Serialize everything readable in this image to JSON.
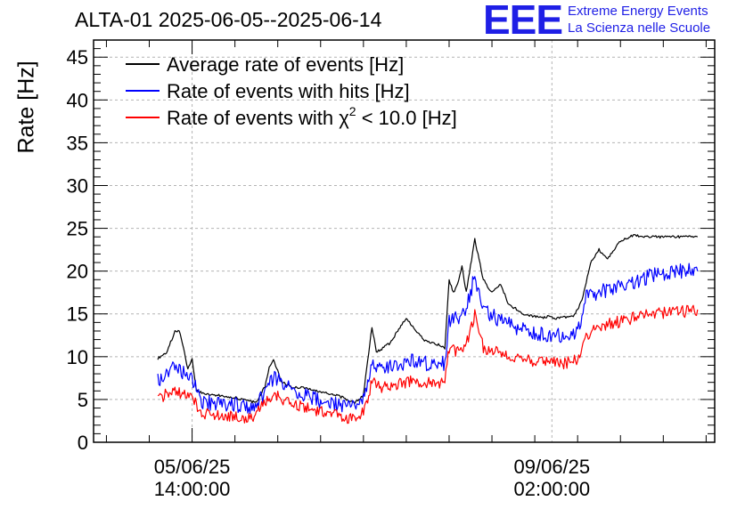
{
  "header": {
    "title": "ALTA-01 2025-06-05--2025-06-14",
    "logo_mark": "EEE",
    "logo_line1": "Extreme Energy Events",
    "logo_line2": "La Scienza nelle Scuole"
  },
  "colors": {
    "black": "#000000",
    "blue": "#0000ff",
    "red": "#ff0000",
    "grid": "#b4b4b4",
    "logo": "#1f1fe6"
  },
  "chart_data": {
    "type": "line",
    "ylabel": "Rate [Hz]",
    "ylim": [
      0,
      47
    ],
    "yticks": [
      0,
      5,
      10,
      15,
      20,
      25,
      30,
      35,
      40,
      45
    ],
    "xlim": [
      "2025-06-04T15:00",
      "2025-06-10T16:00"
    ],
    "xticks": [
      {
        "t": "2025-06-05T14:00",
        "date": "05/06/25",
        "time": "14:00:00"
      },
      {
        "t": "2025-06-09T02:00",
        "date": "09/06/25",
        "time": "02:00:00"
      }
    ],
    "grid": true,
    "legend_position": "top-left",
    "legend": [
      {
        "name": "Average rate of events [Hz]",
        "color": "#000000"
      },
      {
        "name": "Rate of events with hits [Hz]",
        "color": "#0000ff"
      },
      {
        "name_prefix": "Rate of events with ",
        "name_symbol": "χ",
        "name_sup": "2",
        "name_suffix": " < 10.0 [Hz]",
        "color": "#ff0000"
      }
    ],
    "series": [
      {
        "name": "Average rate of events [Hz]",
        "color": "#000000",
        "x": [
          "2025-06-05T06:00",
          "2025-06-05T08:00",
          "2025-06-05T10:00",
          "2025-06-05T11:00",
          "2025-06-05T12:00",
          "2025-06-05T13:00",
          "2025-06-05T14:00",
          "2025-06-05T15:00",
          "2025-06-05T17:00",
          "2025-06-05T20:00",
          "2025-06-05T23:00",
          "2025-06-06T02:00",
          "2025-06-06T05:00",
          "2025-06-06T07:00",
          "2025-06-06T08:00",
          "2025-06-06T09:00",
          "2025-06-06T11:00",
          "2025-06-06T13:00",
          "2025-06-06T16:00",
          "2025-06-06T20:00",
          "2025-06-07T00:00",
          "2025-06-07T02:00",
          "2025-06-07T04:00",
          "2025-06-07T06:00",
          "2025-06-07T08:00",
          "2025-06-07T09:00",
          "2025-06-07T12:00",
          "2025-06-07T16:00",
          "2025-06-07T20:00",
          "2025-06-07T23:00",
          "2025-06-08T01:00",
          "2025-06-08T02:00",
          "2025-06-08T03:00",
          "2025-06-08T04:00",
          "2025-06-08T05:00",
          "2025-06-08T06:00",
          "2025-06-08T08:00",
          "2025-06-08T10:00",
          "2025-06-08T12:00",
          "2025-06-08T14:00",
          "2025-06-08T16:00",
          "2025-06-08T18:00",
          "2025-06-08T20:00",
          "2025-06-08T22:00",
          "2025-06-09T00:00",
          "2025-06-09T01:00",
          "2025-06-09T03:00",
          "2025-06-09T05:00",
          "2025-06-09T07:00",
          "2025-06-09T09:00",
          "2025-06-09T11:00",
          "2025-06-09T13:00",
          "2025-06-09T15:00",
          "2025-06-09T18:00",
          "2025-06-09T21:00",
          "2025-06-10T00:00",
          "2025-06-10T03:00",
          "2025-06-10T05:00",
          "2025-06-10T06:00",
          "2025-06-10T08:00",
          "2025-06-10T10:00",
          "2025-06-10T12:00"
        ],
        "values": [
          9.8,
          10.5,
          12.9,
          13.0,
          11.0,
          8.5,
          9.8,
          6.0,
          5.7,
          5.5,
          5.3,
          5.0,
          4.6,
          6.5,
          8.8,
          9.6,
          7.0,
          6.5,
          6.4,
          5.9,
          5.5,
          5.0,
          4.6,
          5.5,
          13.5,
          10.5,
          11.5,
          14.5,
          12.0,
          11.5,
          11.0,
          19.0,
          17.5,
          18.5,
          20.5,
          17.5,
          23.7,
          19.0,
          17.5,
          18.5,
          16.0,
          15.5,
          14.8,
          14.7,
          14.5,
          14.7,
          14.5,
          14.6,
          14.7,
          16.5,
          21.0,
          22.5,
          21.5,
          23.5,
          24.2,
          24.0,
          24.0,
          24.0,
          24.0,
          24.0,
          24.0,
          24.0
        ]
      },
      {
        "name": "Rate of events with hits [Hz]",
        "color": "#0000ff",
        "x": [
          "2025-06-05T06:00",
          "2025-06-05T08:00",
          "2025-06-05T10:00",
          "2025-06-05T12:00",
          "2025-06-05T14:00",
          "2025-06-05T16:00",
          "2025-06-05T20:00",
          "2025-06-06T00:00",
          "2025-06-06T04:00",
          "2025-06-06T07:00",
          "2025-06-06T09:00",
          "2025-06-06T12:00",
          "2025-06-06T16:00",
          "2025-06-06T20:00",
          "2025-06-07T00:00",
          "2025-06-07T03:00",
          "2025-06-07T06:00",
          "2025-06-07T08:00",
          "2025-06-07T10:00",
          "2025-06-07T14:00",
          "2025-06-07T18:00",
          "2025-06-07T22:00",
          "2025-06-08T01:00",
          "2025-06-08T02:00",
          "2025-06-08T04:00",
          "2025-06-08T06:00",
          "2025-06-08T08:00",
          "2025-06-08T10:00",
          "2025-06-08T13:00",
          "2025-06-08T17:00",
          "2025-06-08T21:00",
          "2025-06-09T01:00",
          "2025-06-09T05:00",
          "2025-06-09T08:00",
          "2025-06-09T10:00",
          "2025-06-09T13:00",
          "2025-06-09T17:00",
          "2025-06-09T21:00",
          "2025-06-10T01:00",
          "2025-06-10T05:00",
          "2025-06-10T09:00",
          "2025-06-10T12:00"
        ],
        "values": [
          7.2,
          8.0,
          8.8,
          8.0,
          7.5,
          4.8,
          4.5,
          4.4,
          4.2,
          5.7,
          7.6,
          6.5,
          5.5,
          4.8,
          4.5,
          4.0,
          5.0,
          9.5,
          8.5,
          9.0,
          9.5,
          9.0,
          9.2,
          14.0,
          14.5,
          15.5,
          19.5,
          15.5,
          14.5,
          13.5,
          13.0,
          12.5,
          12.5,
          13.0,
          17.0,
          17.5,
          18.0,
          18.5,
          19.5,
          19.8,
          20.0,
          20.0
        ]
      },
      {
        "name": "Rate of events with χ2 < 10.0 [Hz]",
        "color": "#ff0000",
        "x": [
          "2025-06-05T06:00",
          "2025-06-05T08:00",
          "2025-06-05T10:00",
          "2025-06-05T12:00",
          "2025-06-05T14:00",
          "2025-06-05T16:00",
          "2025-06-05T20:00",
          "2025-06-06T00:00",
          "2025-06-06T04:00",
          "2025-06-06T07:00",
          "2025-06-06T09:00",
          "2025-06-06T12:00",
          "2025-06-06T16:00",
          "2025-06-06T20:00",
          "2025-06-07T00:00",
          "2025-06-07T03:00",
          "2025-06-07T06:00",
          "2025-06-07T08:00",
          "2025-06-07T10:00",
          "2025-06-07T14:00",
          "2025-06-07T18:00",
          "2025-06-07T22:00",
          "2025-06-08T01:00",
          "2025-06-08T02:00",
          "2025-06-08T04:00",
          "2025-06-08T06:00",
          "2025-06-08T08:00",
          "2025-06-08T10:00",
          "2025-06-08T13:00",
          "2025-06-08T17:00",
          "2025-06-08T21:00",
          "2025-06-09T01:00",
          "2025-06-09T05:00",
          "2025-06-09T08:00",
          "2025-06-09T10:00",
          "2025-06-09T13:00",
          "2025-06-09T17:00",
          "2025-06-09T21:00",
          "2025-06-10T01:00",
          "2025-06-10T05:00",
          "2025-06-10T09:00",
          "2025-06-10T12:00"
        ],
        "values": [
          5.0,
          5.6,
          6.2,
          5.6,
          5.3,
          3.4,
          3.1,
          3.0,
          2.9,
          4.8,
          5.7,
          4.6,
          4.2,
          3.6,
          3.2,
          2.8,
          3.4,
          7.0,
          6.4,
          6.8,
          7.2,
          7.0,
          7.0,
          11.0,
          10.5,
          11.5,
          14.8,
          11.0,
          10.5,
          9.8,
          9.5,
          9.5,
          9.2,
          9.6,
          12.5,
          13.5,
          14.0,
          14.5,
          15.0,
          15.2,
          15.3,
          15.5
        ]
      }
    ]
  }
}
